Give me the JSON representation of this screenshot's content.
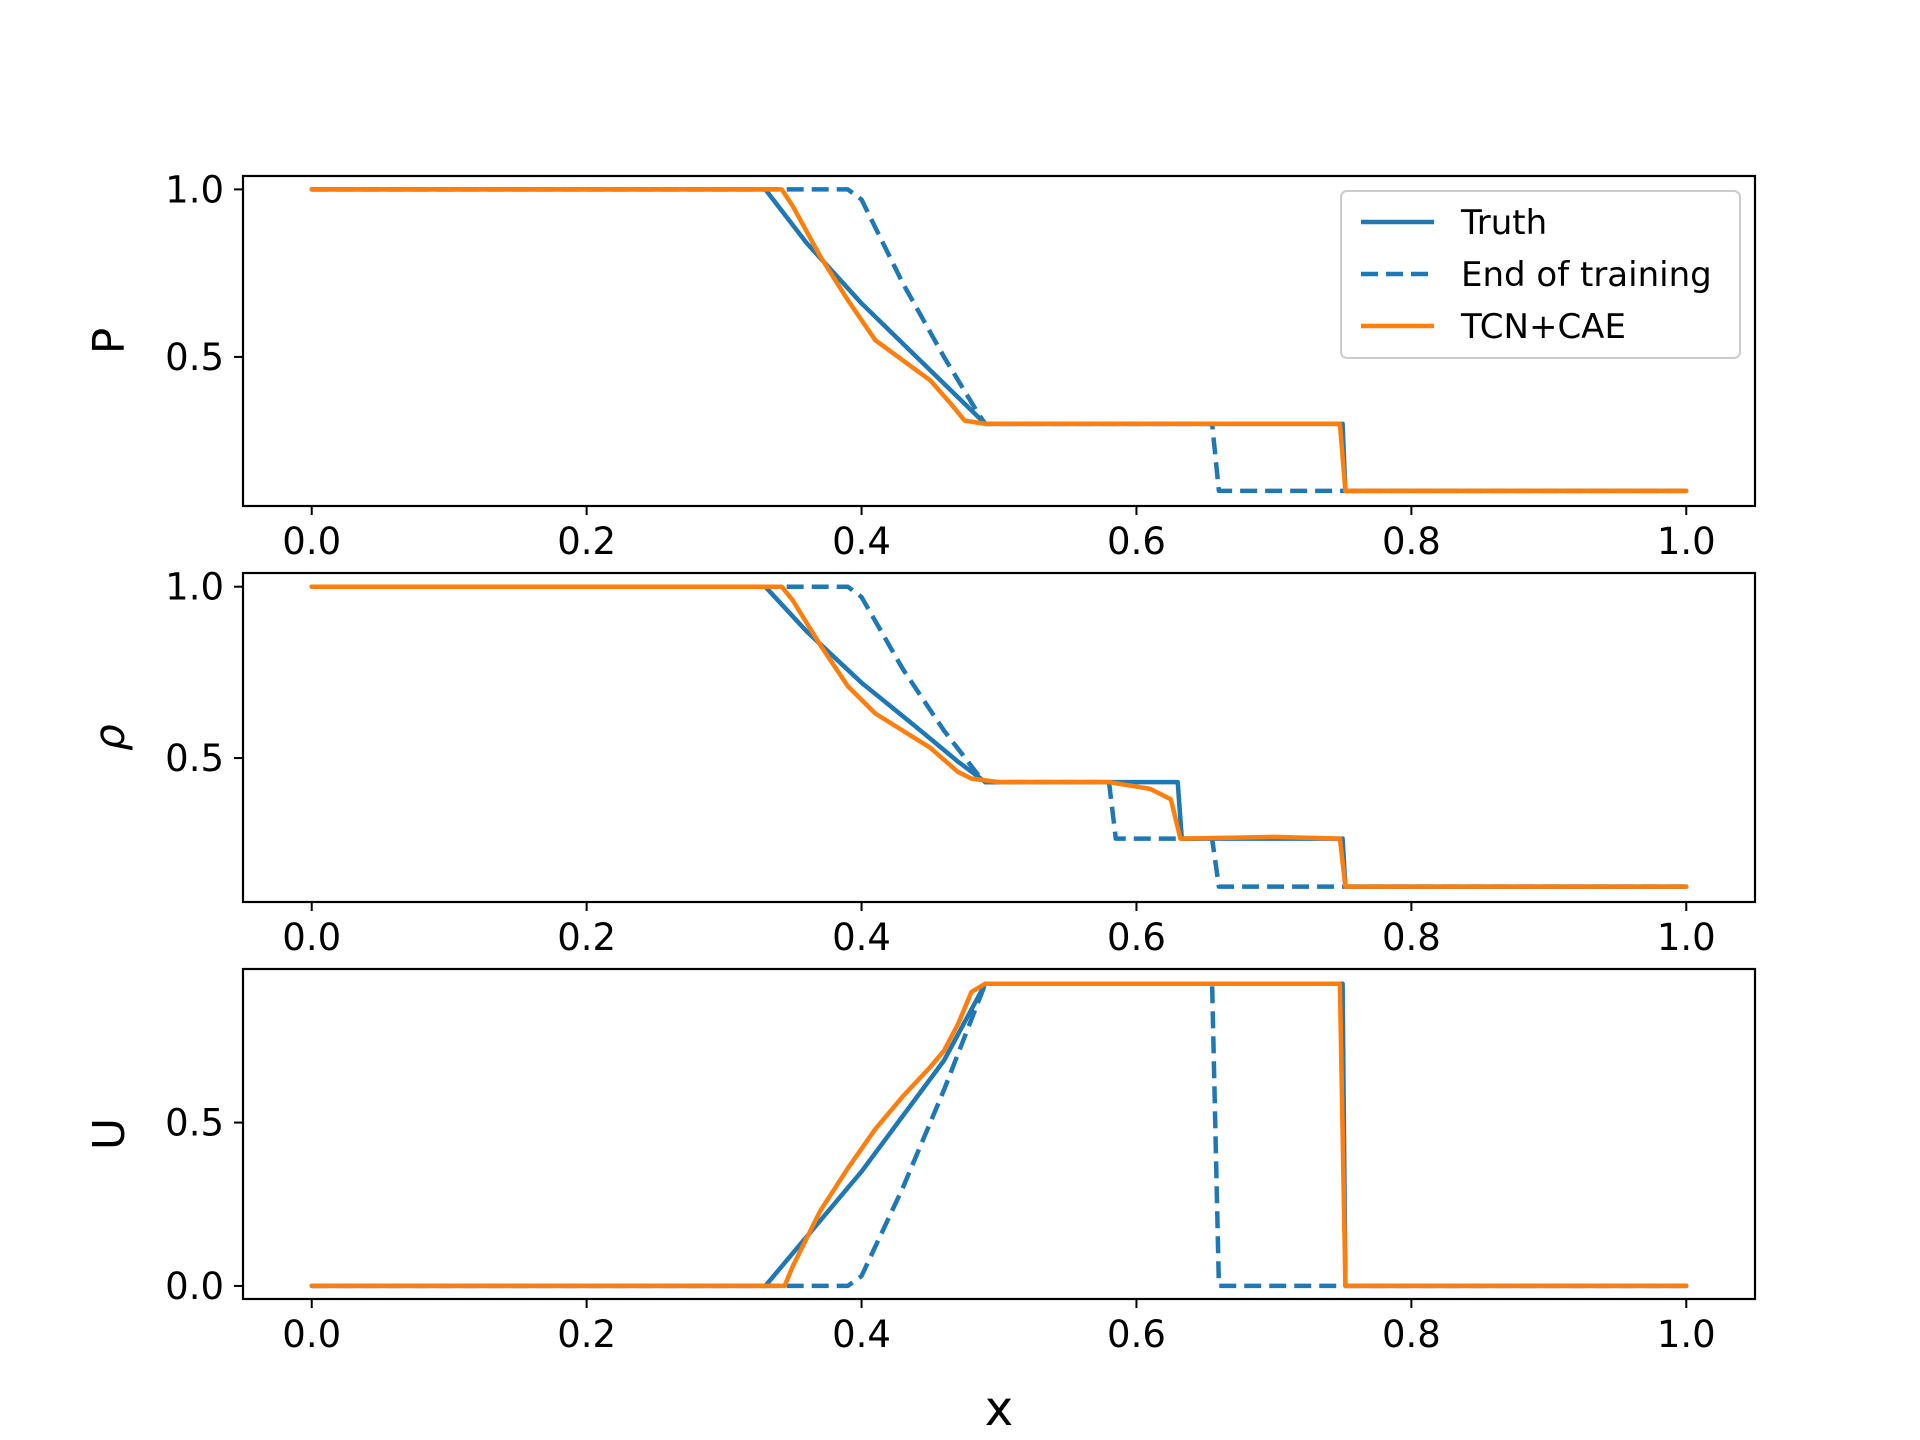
{
  "chart_data": [
    {
      "type": "line",
      "ylabel": "P",
      "xlim": [
        -0.05,
        1.05
      ],
      "ylim": [
        0.055,
        1.04
      ],
      "xticks": [
        "0.0",
        "0.2",
        "0.4",
        "0.6",
        "0.8",
        "1.0"
      ],
      "yticks": [
        "0.5",
        "1.0"
      ],
      "legend": {
        "position": "top-right",
        "entries": [
          "Truth",
          "End of training",
          "TCN+CAE"
        ]
      },
      "series": [
        {
          "name": "Truth",
          "style": "solid",
          "color": "#1f77b4",
          "x": [
            0,
            0.33,
            0.36,
            0.4,
            0.44,
            0.47,
            0.49,
            0.75,
            0.752,
            1.0
          ],
          "y": [
            1.0,
            1.0,
            0.84,
            0.66,
            0.5,
            0.38,
            0.3,
            0.3,
            0.1,
            0.1
          ]
        },
        {
          "name": "End of training",
          "style": "dashed",
          "color": "#1f77b4",
          "x": [
            0,
            0.39,
            0.4,
            0.43,
            0.46,
            0.485,
            0.49,
            0.655,
            0.66,
            1.0
          ],
          "y": [
            1.0,
            1.0,
            0.97,
            0.72,
            0.5,
            0.33,
            0.3,
            0.3,
            0.1,
            0.1
          ]
        },
        {
          "name": "TCN+CAE",
          "style": "solid",
          "color": "#ff7f0e",
          "x": [
            0,
            0.342,
            0.35,
            0.37,
            0.39,
            0.41,
            0.43,
            0.45,
            0.465,
            0.475,
            0.49,
            0.748,
            0.752,
            1.0
          ],
          "y": [
            1.0,
            1.0,
            0.95,
            0.8,
            0.67,
            0.55,
            0.49,
            0.43,
            0.36,
            0.31,
            0.3,
            0.3,
            0.1,
            0.1
          ]
        }
      ]
    },
    {
      "type": "line",
      "ylabel": "ρ",
      "xlim": [
        -0.05,
        1.05
      ],
      "ylim": [
        0.08,
        1.04
      ],
      "xticks": [
        "0.0",
        "0.2",
        "0.4",
        "0.6",
        "0.8",
        "1.0"
      ],
      "yticks": [
        "0.5",
        "1.0"
      ],
      "series": [
        {
          "name": "Truth",
          "style": "solid",
          "color": "#1f77b4",
          "x": [
            0,
            0.33,
            0.36,
            0.4,
            0.44,
            0.47,
            0.49,
            0.63,
            0.633,
            0.75,
            0.752,
            1.0
          ],
          "y": [
            1.0,
            1.0,
            0.87,
            0.72,
            0.59,
            0.49,
            0.43,
            0.43,
            0.265,
            0.265,
            0.125,
            0.125
          ]
        },
        {
          "name": "End of training",
          "style": "dashed",
          "color": "#1f77b4",
          "x": [
            0,
            0.39,
            0.4,
            0.43,
            0.46,
            0.485,
            0.49,
            0.58,
            0.585,
            0.655,
            0.66,
            1.0
          ],
          "y": [
            1.0,
            1.0,
            0.97,
            0.76,
            0.58,
            0.45,
            0.43,
            0.43,
            0.265,
            0.265,
            0.125,
            0.125
          ]
        },
        {
          "name": "TCN+CAE",
          "style": "solid",
          "color": "#ff7f0e",
          "x": [
            0,
            0.342,
            0.35,
            0.37,
            0.39,
            0.41,
            0.43,
            0.45,
            0.47,
            0.48,
            0.5,
            0.58,
            0.61,
            0.625,
            0.632,
            0.7,
            0.748,
            0.752,
            1.0
          ],
          "y": [
            1.0,
            1.0,
            0.96,
            0.83,
            0.71,
            0.63,
            0.58,
            0.53,
            0.46,
            0.44,
            0.43,
            0.43,
            0.41,
            0.38,
            0.265,
            0.27,
            0.265,
            0.125,
            0.125
          ]
        }
      ]
    },
    {
      "type": "line",
      "ylabel": "U",
      "xlabel": "x",
      "xlim": [
        -0.05,
        1.05
      ],
      "ylim": [
        -0.04,
        0.97
      ],
      "xticks": [
        "0.0",
        "0.2",
        "0.4",
        "0.6",
        "0.8",
        "1.0"
      ],
      "yticks": [
        "0.0",
        "0.5"
      ],
      "series": [
        {
          "name": "Truth",
          "style": "solid",
          "color": "#1f77b4",
          "x": [
            0,
            0.33,
            0.4,
            0.46,
            0.49,
            0.75,
            0.752,
            1.0
          ],
          "y": [
            0,
            0,
            0.35,
            0.69,
            0.925,
            0.925,
            0,
            0
          ]
        },
        {
          "name": "End of training",
          "style": "dashed",
          "color": "#1f77b4",
          "x": [
            0,
            0.39,
            0.4,
            0.43,
            0.46,
            0.49,
            0.655,
            0.66,
            1.0
          ],
          "y": [
            0,
            0,
            0.03,
            0.3,
            0.6,
            0.925,
            0.925,
            0,
            0
          ]
        },
        {
          "name": "TCN+CAE",
          "style": "solid",
          "color": "#ff7f0e",
          "x": [
            0,
            0.344,
            0.35,
            0.37,
            0.39,
            0.41,
            0.43,
            0.45,
            0.46,
            0.47,
            0.48,
            0.49,
            0.748,
            0.752,
            1.0
          ],
          "y": [
            0,
            0,
            0.06,
            0.23,
            0.36,
            0.48,
            0.58,
            0.67,
            0.72,
            0.8,
            0.9,
            0.925,
            0.925,
            0,
            0
          ]
        }
      ]
    }
  ]
}
